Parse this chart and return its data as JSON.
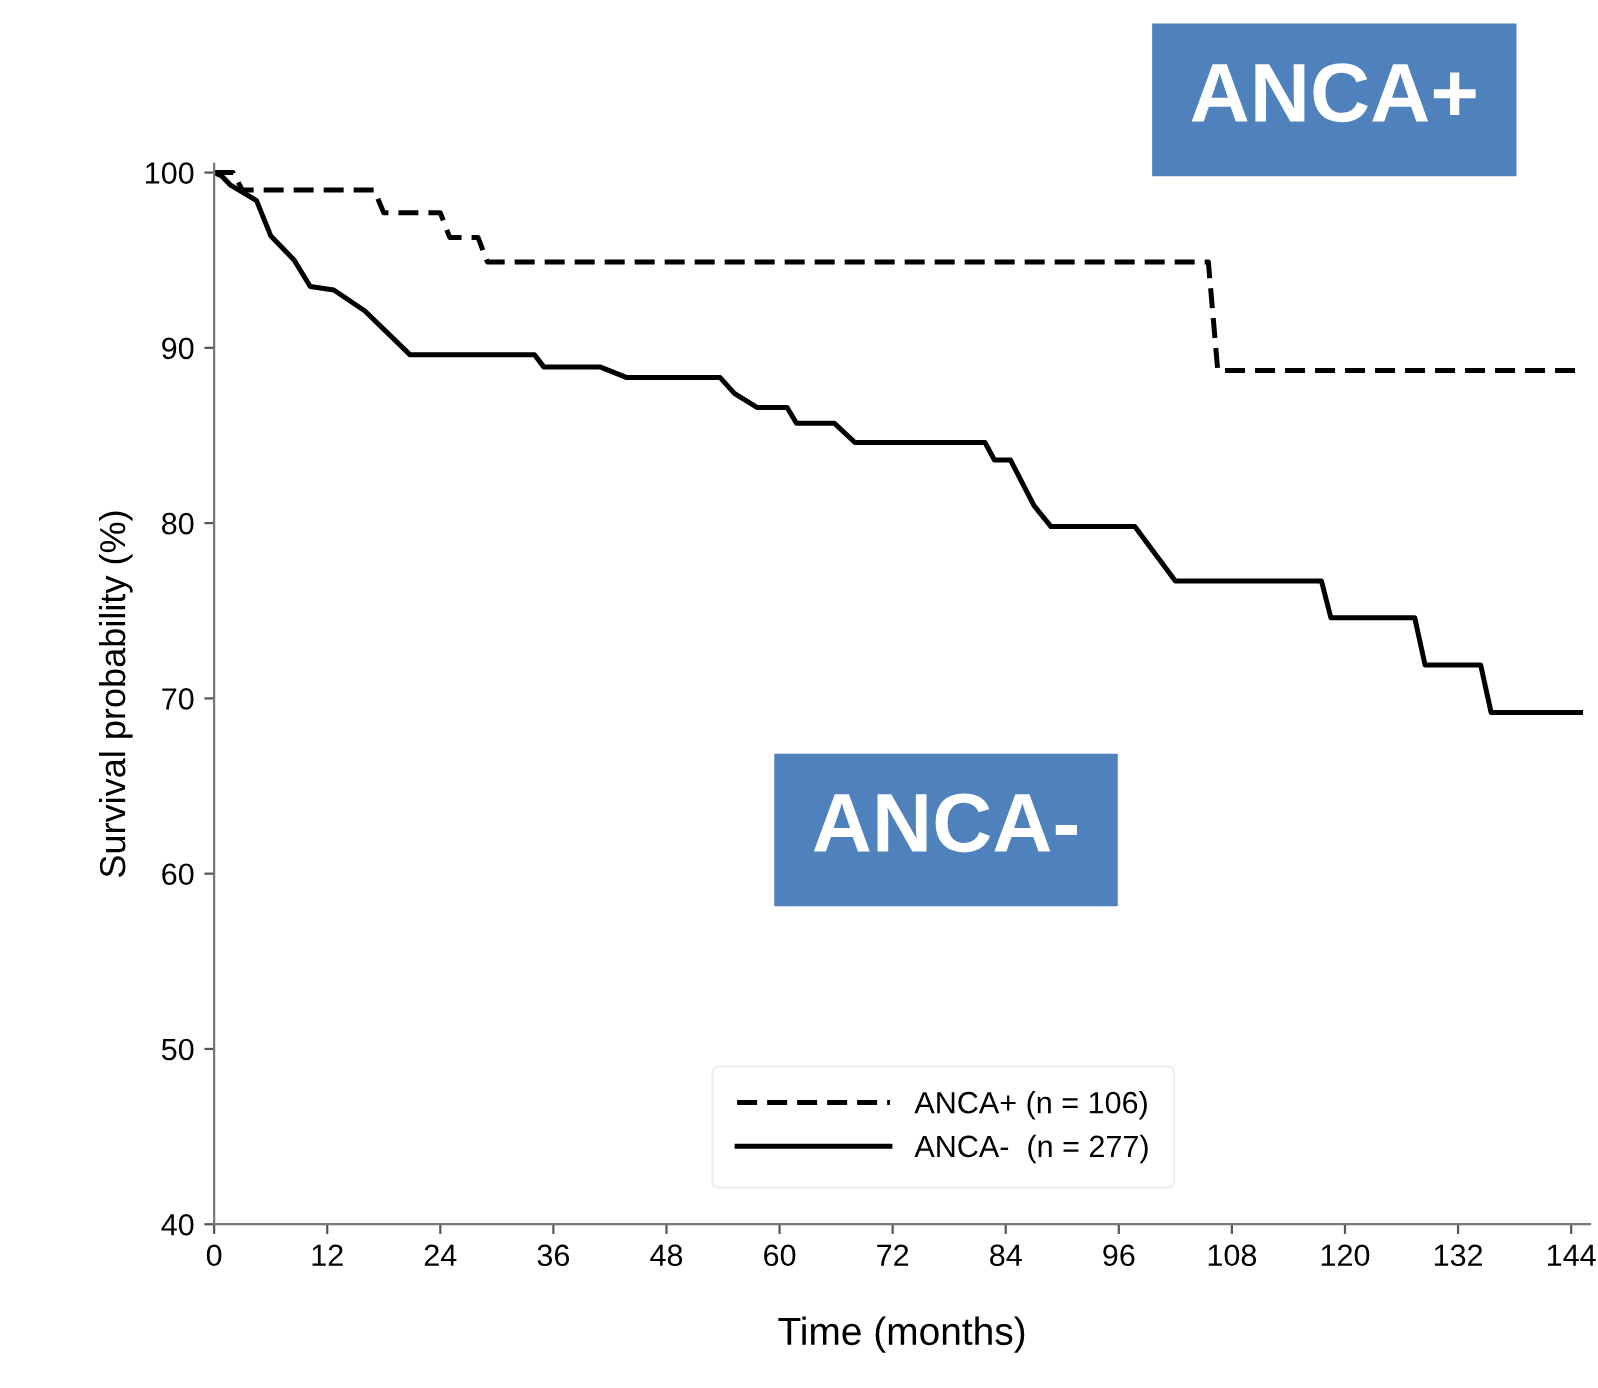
{
  "chart_data": {
    "type": "line",
    "xlabel": "Time (months)",
    "ylabel": "Survival probability (%)",
    "xlim": [
      0,
      146
    ],
    "ylim": [
      40,
      100.5
    ],
    "xticks": [
      0,
      12,
      24,
      36,
      48,
      60,
      72,
      84,
      96,
      108,
      120,
      132,
      144
    ],
    "yticks": [
      40,
      50,
      60,
      70,
      80,
      90,
      100
    ],
    "grid": false,
    "legend": "bottom",
    "marker": "none",
    "annotations": [
      "ANCA+",
      "ANCA-"
    ],
    "series": [
      {
        "name": "ANCA+ (n = 106)",
        "color": "#000000",
        "line_style": "dashed",
        "x": [
          0,
          2,
          3,
          17,
          18,
          24,
          25,
          28,
          29,
          105.5,
          106.5,
          145
        ],
        "values": [
          100,
          100,
          99,
          99,
          97.7,
          97.7,
          96.3,
          96.3,
          94.9,
          94.9,
          88.7,
          88.7
        ]
      },
      {
        "name": "ANCA-  (n = 277)",
        "color": "#000000",
        "line_style": "solid",
        "x": [
          0,
          0.8,
          1.7,
          4.5,
          6,
          8.5,
          10.2,
          12.7,
          16,
          20.8,
          34,
          35,
          41,
          43.8,
          53.7,
          55.2,
          57.6,
          60.8,
          61.8,
          65.8,
          68,
          81.8,
          82.8,
          84.5,
          87,
          88.8,
          97.7,
          102,
          117.5,
          118.5,
          127.4,
          128.5,
          134.4,
          135.5,
          145
        ],
        "values": [
          100,
          99.8,
          99.3,
          98.4,
          96.4,
          95,
          93.5,
          93.3,
          92.1,
          89.6,
          89.6,
          88.9,
          88.9,
          88.3,
          88.3,
          87.4,
          86.6,
          86.6,
          85.7,
          85.7,
          84.6,
          84.6,
          83.6,
          83.6,
          81,
          79.8,
          79.8,
          76.7,
          76.7,
          74.6,
          74.6,
          71.9,
          71.9,
          69.2,
          69.2
        ]
      }
    ]
  }
}
